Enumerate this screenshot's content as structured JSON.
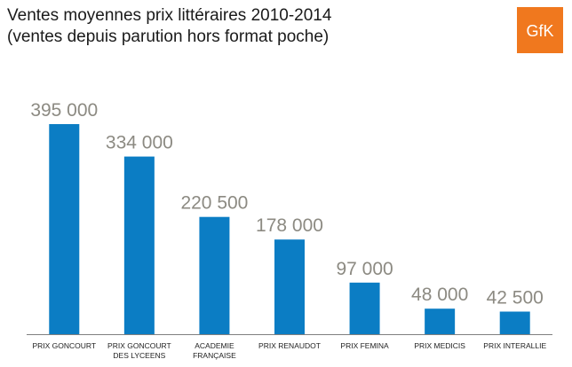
{
  "title_line1": "Ventes moyennes prix littéraires 2010-2014",
  "title_line2": "(ventes depuis parution hors format poche)",
  "logo_text": "GfK",
  "colors": {
    "bar": "#0b7dc4",
    "value_label": "#8c8a82",
    "axis": "#7f7f7f",
    "logo_bg": "#f0781e"
  },
  "chart_data": {
    "type": "bar",
    "title": "Ventes moyennes prix littéraires 2010-2014",
    "subtitle": "(ventes depuis parution hors format poche)",
    "categories": [
      [
        "PRIX GONCOURT"
      ],
      [
        "PRIX GONCOURT",
        "DES LYCEENS"
      ],
      [
        "ACADEMIE",
        "FRANÇAISE"
      ],
      [
        "PRIX RENAUDOT"
      ],
      [
        "PRIX FEMINA"
      ],
      [
        "PRIX MEDICIS"
      ],
      [
        "PRIX INTERALLIE"
      ]
    ],
    "values": [
      395000,
      334000,
      220500,
      178000,
      97000,
      48000,
      42500
    ],
    "value_labels": [
      "395 000",
      "334 000",
      "220 500",
      "178 000",
      "97 000",
      "48 000",
      "42 500"
    ],
    "xlabel": "",
    "ylabel": "",
    "ylim": [
      0,
      395000
    ],
    "grid": false,
    "legend": "none"
  }
}
